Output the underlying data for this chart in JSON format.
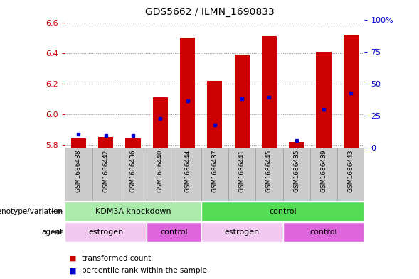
{
  "title": "GDS5662 / ILMN_1690833",
  "samples": [
    "GSM1686438",
    "GSM1686442",
    "GSM1686436",
    "GSM1686440",
    "GSM1686444",
    "GSM1686437",
    "GSM1686441",
    "GSM1686445",
    "GSM1686435",
    "GSM1686439",
    "GSM1686443"
  ],
  "red_values": [
    5.84,
    5.85,
    5.84,
    6.11,
    6.5,
    6.22,
    6.39,
    6.51,
    5.82,
    6.41,
    6.52
  ],
  "blue_values": [
    5.87,
    5.86,
    5.86,
    5.97,
    6.09,
    5.93,
    6.1,
    6.11,
    5.83,
    6.03,
    6.14
  ],
  "ylim_left": [
    5.78,
    6.62
  ],
  "ylim_right": [
    0,
    100
  ],
  "yticks_left": [
    5.8,
    6.0,
    6.2,
    6.4,
    6.6
  ],
  "yticks_right": [
    0,
    25,
    50,
    75,
    100
  ],
  "ytick_labels_right": [
    "0",
    "25",
    "50",
    "75",
    "100%"
  ],
  "bar_base": 5.78,
  "bar_color": "#cc0000",
  "dot_color": "#0000cc",
  "bar_width": 0.55,
  "genotype_groups": [
    {
      "label": "KDM3A knockdown",
      "start": 0,
      "end": 5,
      "color": "#aaeaaa"
    },
    {
      "label": "control",
      "start": 5,
      "end": 11,
      "color": "#55dd55"
    }
  ],
  "agent_groups": [
    {
      "label": "estrogen",
      "start": 0,
      "end": 3,
      "color": "#f0c8f0"
    },
    {
      "label": "control",
      "start": 3,
      "end": 5,
      "color": "#dd66dd"
    },
    {
      "label": "estrogen",
      "start": 5,
      "end": 8,
      "color": "#f0c8f0"
    },
    {
      "label": "control",
      "start": 8,
      "end": 11,
      "color": "#dd66dd"
    }
  ],
  "left_label_color": "#cc0000",
  "right_label_color": "#0000cc",
  "grid_color": "#888888",
  "bg_color": "#ffffff",
  "cell_bg_color": "#cccccc",
  "cell_border_color": "#999999"
}
